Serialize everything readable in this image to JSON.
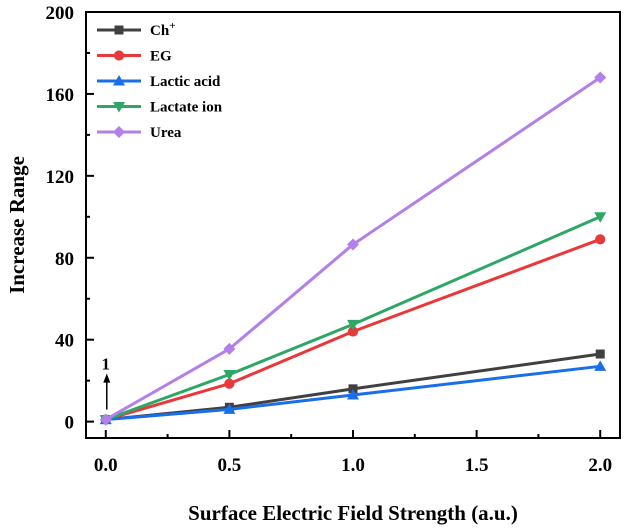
{
  "chart_data": {
    "type": "line",
    "title": "",
    "xlabel": "Surface Electric Field Strength (a.u.)",
    "ylabel": "Increase Range",
    "xlim": [
      -0.08,
      2.08
    ],
    "ylim": [
      -8,
      200
    ],
    "x_ticks": [
      0.0,
      0.5,
      1.0,
      1.5,
      2.0
    ],
    "x_tick_labels": [
      "0.0",
      "0.5",
      "1.0",
      "1.5",
      "2.0"
    ],
    "y_ticks": [
      0,
      40,
      80,
      120,
      160,
      200
    ],
    "y_tick_labels": [
      "0",
      "40",
      "80",
      "120",
      "160",
      "200"
    ],
    "grid": false,
    "legend_position": "top-left",
    "series": [
      {
        "name": "Ch",
        "superscript": "+",
        "color": "#404040",
        "marker": "square",
        "x": [
          0,
          0.5,
          1.0,
          2.0
        ],
        "y": [
          1,
          7,
          16,
          33
        ]
      },
      {
        "name": "EG",
        "color": "#e8383a",
        "marker": "circle",
        "x": [
          0,
          0.5,
          1.0,
          2.0
        ],
        "y": [
          1,
          18.5,
          44,
          89
        ]
      },
      {
        "name": "Lactic acid",
        "color": "#1a6ee8",
        "marker": "triangle-up",
        "x": [
          0,
          0.5,
          1.0,
          2.0
        ],
        "y": [
          1,
          6,
          13,
          27
        ]
      },
      {
        "name": "Lactate ion",
        "color": "#2ea766",
        "marker": "triangle-down",
        "x": [
          0,
          0.5,
          1.0,
          2.0
        ],
        "y": [
          1,
          23,
          47.5,
          100
        ]
      },
      {
        "name": "Urea",
        "color": "#b37fe8",
        "marker": "diamond",
        "x": [
          0,
          0.5,
          1.0,
          2.0
        ],
        "y": [
          1,
          35.5,
          86.5,
          168
        ]
      }
    ],
    "annotations": [
      {
        "text": "1",
        "x": 0,
        "y": 1,
        "arrow": true
      }
    ]
  }
}
